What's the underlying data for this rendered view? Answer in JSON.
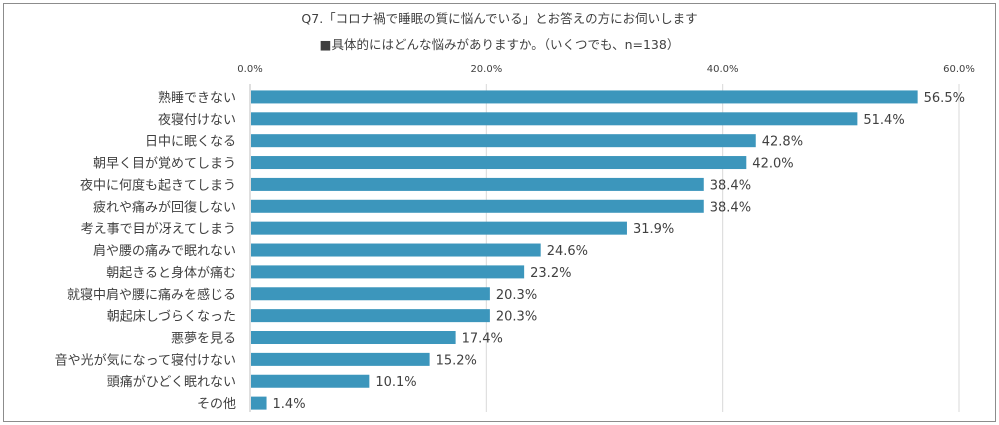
{
  "chart_data": {
    "type": "bar",
    "orientation": "horizontal",
    "title": "Q7.「コロナ禍で睡眠の質に悩んでいる」とお答えの方にお伺いします",
    "subtitle": "■具体的にはどんな悩みがありますか。（いくつでも、n=138）",
    "categories": [
      "熟睡できない",
      "夜寝付けない",
      "日中に眠くなる",
      "朝早く目が覚めてしまう",
      "夜中に何度も起きてしまう",
      "疲れや痛みが回復しない",
      "考え事で目が冴えてしまう",
      "肩や腰の痛みで眠れない",
      "朝起きると身体が痛む",
      "就寝中肩や腰に痛みを感じる",
      "朝起床しづらくなった",
      "悪夢を見る",
      "音や光が気になって寝付けない",
      "頭痛がひどく眠れない",
      "その他"
    ],
    "values": [
      56.5,
      51.4,
      42.8,
      42.0,
      38.4,
      38.4,
      31.9,
      24.6,
      23.2,
      20.3,
      20.3,
      17.4,
      15.2,
      10.1,
      1.4
    ],
    "data_labels": [
      "56.5%",
      "51.4%",
      "42.8%",
      "42.0%",
      "38.4%",
      "38.4%",
      "31.9%",
      "24.6%",
      "23.2%",
      "20.3%",
      "20.3%",
      "17.4%",
      "15.2%",
      "10.1%",
      "1.4%"
    ],
    "xlim": [
      0,
      60
    ],
    "x_ticks": [
      "0.0%",
      "20.0%",
      "40.0%",
      "60.0%"
    ],
    "x_tick_values": [
      0,
      20,
      40,
      60
    ],
    "axis_position": "top",
    "grid": true,
    "bar_color": "#3c96bc",
    "grid_color": "#d9d9d9"
  }
}
